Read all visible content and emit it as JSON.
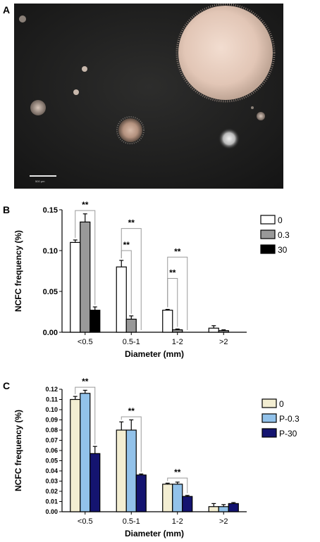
{
  "panels": {
    "a": {
      "letter": "A",
      "scale_bar_label": "500 µm"
    },
    "b": {
      "letter": "B"
    },
    "c": {
      "letter": "C"
    }
  },
  "chart_data": [
    {
      "type": "bar",
      "panel": "B",
      "categories": [
        "<0.5",
        "0.5-1",
        "1-2",
        ">2"
      ],
      "series": [
        {
          "name": "0",
          "values": [
            0.11,
            0.08,
            0.027,
            0.005
          ],
          "errors": [
            0.003,
            0.008,
            0.001,
            0.003
          ],
          "color": "#ffffff"
        },
        {
          "name": "0.3",
          "values": [
            0.135,
            0.016,
            0.003,
            0.002
          ],
          "errors": [
            0.01,
            0.004,
            0.001,
            0.001
          ],
          "color": "#999999"
        },
        {
          "name": "30",
          "values": [
            0.027,
            0.0,
            0.0,
            0.0
          ],
          "errors": [
            0.004,
            0,
            0,
            0
          ],
          "color": "#000000"
        }
      ],
      "ylim": [
        0,
        0.15
      ],
      "yticks": [
        "0.00",
        "0.05",
        "0.10",
        "0.15"
      ],
      "xlabel": "Diameter (mm)",
      "ylabel": "NCFC frequency (%)",
      "legend_position": "right",
      "annotations": [
        {
          "text": "**",
          "category": 0,
          "from": 0,
          "to": 2,
          "level": 0.149
        },
        {
          "text": "**",
          "category": 1,
          "from": 0,
          "to": 2,
          "level": 0.127
        },
        {
          "text": "**",
          "category": 1,
          "from": 0,
          "to": 1,
          "level": 0.1
        },
        {
          "text": "**",
          "category": 2,
          "from": 0,
          "to": 2,
          "level": 0.092
        },
        {
          "text": "**",
          "category": 2,
          "from": 0,
          "to": 1,
          "level": 0.066
        }
      ]
    },
    {
      "type": "bar",
      "panel": "C",
      "categories": [
        "<0.5",
        "0.5-1",
        "1-2",
        ">2"
      ],
      "series": [
        {
          "name": "0",
          "values": [
            0.11,
            0.08,
            0.027,
            0.005
          ],
          "errors": [
            0.003,
            0.008,
            0.001,
            0.003
          ],
          "color": "#f3eed2"
        },
        {
          "name": "P-0.3",
          "values": [
            0.116,
            0.08,
            0.027,
            0.005
          ],
          "errors": [
            0.003,
            0.01,
            0.002,
            0.002
          ],
          "color": "#92c2ea"
        },
        {
          "name": "P-30",
          "values": [
            0.057,
            0.036,
            0.015,
            0.008
          ],
          "errors": [
            0.007,
            0.001,
            0.001,
            0.001
          ],
          "color": "#141470"
        }
      ],
      "ylim": [
        0,
        0.12
      ],
      "yticks": [
        "0.00",
        "0.01",
        "0.02",
        "0.03",
        "0.04",
        "0.05",
        "0.06",
        "0.07",
        "0.08",
        "0.09",
        "0.10",
        "0.11",
        "0.12"
      ],
      "xlabel": "Diameter (mm)",
      "ylabel": "NCFC frequency (%)",
      "legend_position": "right",
      "annotations": [
        {
          "text": "**",
          "category": 0,
          "from": 0,
          "to": 2,
          "level": 0.122
        },
        {
          "text": "**",
          "category": 1,
          "from": 0,
          "to": 2,
          "level": 0.093
        },
        {
          "text": "**",
          "category": 2,
          "from": 0,
          "to": 2,
          "level": 0.033
        }
      ]
    }
  ]
}
